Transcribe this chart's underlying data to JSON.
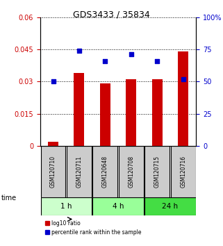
{
  "title": "GDS3433 / 35834",
  "samples": [
    "GSM120710",
    "GSM120711",
    "GSM120648",
    "GSM120708",
    "GSM120715",
    "GSM120716"
  ],
  "log10_ratio": [
    0.002,
    0.034,
    0.029,
    0.031,
    0.031,
    0.044
  ],
  "percentile_rank": [
    50,
    74,
    66,
    71,
    66,
    52
  ],
  "groups": [
    {
      "label": "1 h",
      "indices": [
        0,
        1
      ],
      "color": "#ccffcc"
    },
    {
      "label": "4 h",
      "indices": [
        2,
        3
      ],
      "color": "#99ff99"
    },
    {
      "label": "24 h",
      "indices": [
        4,
        5
      ],
      "color": "#44dd44"
    }
  ],
  "left_yticks": [
    0,
    0.015,
    0.03,
    0.045,
    0.06
  ],
  "left_ylabels": [
    "0",
    "0.015",
    "0.03",
    "0.045",
    "0.06"
  ],
  "right_yticks": [
    0,
    25,
    50,
    75,
    100
  ],
  "right_ylabels": [
    "0",
    "25",
    "50",
    "75",
    "100%"
  ],
  "left_color": "#cc0000",
  "right_color": "#0000cc",
  "bar_color": "#cc0000",
  "dot_color": "#0000cc",
  "ylim_left": [
    0,
    0.06
  ],
  "ylim_right": [
    0,
    100
  ],
  "grid_color": "#000000",
  "sample_box_color": "#cccccc",
  "legend_red": "log10 ratio",
  "legend_blue": "percentile rank within the sample",
  "time_label": "time",
  "bar_width": 0.4
}
